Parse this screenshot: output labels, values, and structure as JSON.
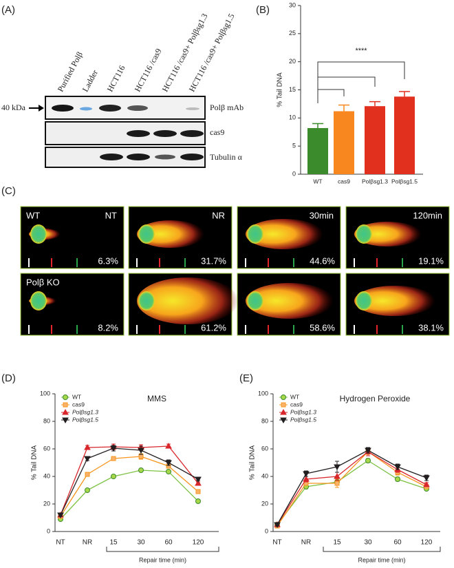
{
  "panel_labels": [
    "(A)",
    "(B)",
    "(C)",
    "(D)",
    "(E)"
  ],
  "blot": {
    "lanes": [
      "Purified Polβ",
      "Ladder",
      "HCT116",
      "HCT116 /cas9",
      "HCT116 /cas9+ Polβsg1.3",
      "HCT116 /cas9+ Polβsg1.5"
    ],
    "rows": [
      "Polβ mAb",
      "cas9",
      "Tubulin α"
    ],
    "marker": "40 kDa"
  },
  "comet": {
    "rows": [
      {
        "label": "WT",
        "cells": [
          {
            "condition": "NT",
            "tail": "6.3%"
          },
          {
            "condition": "NR",
            "tail": "31.7%"
          },
          {
            "condition": "30min",
            "tail": "44.6%"
          },
          {
            "condition": "120min",
            "tail": "19.1%"
          }
        ]
      },
      {
        "label": "Polβ KO",
        "cells": [
          {
            "tail": "8.2%"
          },
          {
            "tail": "61.2%"
          },
          {
            "tail": "58.6%"
          },
          {
            "tail": "38.1%"
          }
        ]
      }
    ]
  },
  "chart_data": [
    {
      "type": "bar",
      "ylabel": "% Tail DNA",
      "categories": [
        "WT",
        "cas9",
        "Polβsg1.3",
        "Polβsg1.5"
      ],
      "values": [
        8.2,
        11.2,
        12.1,
        13.8
      ],
      "errors": [
        0.8,
        1.1,
        0.8,
        0.9
      ],
      "colors": [
        "#3b8a2b",
        "#f7871e",
        "#e2301f",
        "#e2301f"
      ],
      "ylim": [
        0,
        30
      ],
      "yticks": [
        0,
        5,
        10,
        15,
        20,
        25,
        30
      ],
      "annotation": "****"
    },
    {
      "type": "line",
      "title": "MMS",
      "ylabel": "% Tail DNA",
      "xlabel": "Repair time (min)",
      "categories": [
        "NT",
        "NR",
        "15",
        "30",
        "60",
        "120"
      ],
      "series": [
        {
          "name": "WT",
          "color": "#7dc242",
          "marker": "circle",
          "values": [
            9,
            30,
            40,
            44.5,
            43.5,
            22
          ],
          "errors": [
            1,
            1,
            1,
            1,
            1,
            1
          ]
        },
        {
          "name": "cas9",
          "color": "#f7941d",
          "marker": "square",
          "values": [
            11,
            41.5,
            53,
            54.5,
            47.5,
            29
          ],
          "errors": [
            1,
            1,
            1.5,
            2,
            1.5,
            1
          ]
        },
        {
          "name": "Polβsg1.3",
          "color": "#d9262b",
          "marker": "triangle",
          "values": [
            12,
            61,
            61.5,
            61,
            62,
            35
          ],
          "errors": [
            1,
            1.5,
            2,
            2,
            1.5,
            1
          ]
        },
        {
          "name": "Polβsg1.5",
          "color": "#231f20",
          "marker": "triangle-down",
          "values": [
            12,
            53,
            60.5,
            59,
            50,
            38
          ],
          "errors": [
            1,
            1.5,
            2,
            3,
            2,
            1
          ]
        }
      ],
      "ylim": [
        0,
        100
      ],
      "yticks": [
        0,
        20,
        40,
        60,
        80,
        100
      ]
    },
    {
      "type": "line",
      "title": "Hydrogen Peroxide",
      "ylabel": "% Tail DNA",
      "xlabel": "Repair time (min)",
      "categories": [
        "NT",
        "NR",
        "15",
        "30",
        "60",
        "120"
      ],
      "series": [
        {
          "name": "WT",
          "color": "#7dc242",
          "marker": "circle",
          "values": [
            5,
            32.5,
            36,
            51.5,
            38,
            31
          ],
          "errors": [
            1,
            1.5,
            2,
            1.5,
            1.5,
            1
          ]
        },
        {
          "name": "cas9",
          "color": "#f7941d",
          "marker": "square",
          "values": [
            4,
            35,
            35,
            58,
            43,
            32.5
          ],
          "errors": [
            1,
            1.5,
            3,
            2,
            2,
            1
          ]
        },
        {
          "name": "Polβsg1.3",
          "color": "#d9262b",
          "marker": "triangle",
          "values": [
            5,
            38,
            40,
            58,
            45,
            34
          ],
          "errors": [
            1,
            2,
            3,
            3,
            2,
            1.5
          ]
        },
        {
          "name": "Polβsg1.5",
          "color": "#231f20",
          "marker": "triangle-down",
          "values": [
            5,
            42,
            47,
            59,
            47,
            39
          ],
          "errors": [
            1,
            2,
            4,
            2,
            2,
            2
          ]
        }
      ],
      "ylim": [
        0,
        100
      ],
      "yticks": [
        0,
        20,
        40,
        60,
        80,
        100
      ]
    }
  ]
}
